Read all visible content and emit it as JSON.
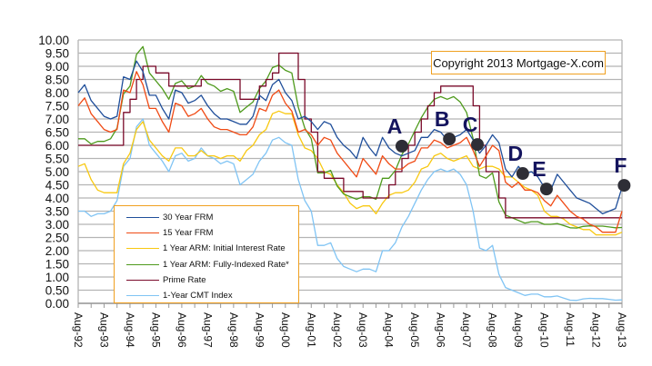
{
  "chart_data": {
    "type": "line",
    "title": "",
    "xlabel": "",
    "ylabel": "",
    "ylim": [
      0,
      10
    ],
    "y_ticks": [
      "0.00",
      "0.50",
      "1.00",
      "1.50",
      "2.00",
      "2.50",
      "3.00",
      "3.50",
      "4.00",
      "4.50",
      "5.00",
      "5.50",
      "6.00",
      "6.50",
      "7.00",
      "7.50",
      "8.00",
      "8.50",
      "9.00",
      "9.50",
      "10.00"
    ],
    "x_tick_labels": [
      "Aug-92",
      "Aug-93",
      "Aug-94",
      "Aug-95",
      "Aug-96",
      "Aug-97",
      "Aug-98",
      "Aug-99",
      "Aug-00",
      "Aug-01",
      "Aug-02",
      "Aug-03",
      "Aug-04",
      "Aug-05",
      "Aug-06",
      "Aug-07",
      "Aug-08",
      "Aug-09",
      "Aug-10",
      "Aug-11",
      "Aug-12",
      "Aug-13"
    ],
    "xlim": [
      "1992-08",
      "2013-08"
    ],
    "grid": "horizontal",
    "legend_position": "bottom-left",
    "x": [
      "1992-08",
      "1992-11",
      "1993-02",
      "1993-05",
      "1993-08",
      "1993-11",
      "1994-02",
      "1994-05",
      "1994-08",
      "1994-11",
      "1995-02",
      "1995-05",
      "1995-08",
      "1995-11",
      "1996-02",
      "1996-05",
      "1996-08",
      "1996-11",
      "1997-02",
      "1997-05",
      "1997-08",
      "1997-11",
      "1998-02",
      "1998-05",
      "1998-08",
      "1998-11",
      "1999-02",
      "1999-05",
      "1999-08",
      "1999-11",
      "2000-02",
      "2000-05",
      "2000-08",
      "2000-11",
      "2001-02",
      "2001-05",
      "2001-08",
      "2001-11",
      "2002-02",
      "2002-05",
      "2002-08",
      "2002-11",
      "2003-02",
      "2003-05",
      "2003-08",
      "2003-11",
      "2004-02",
      "2004-05",
      "2004-08",
      "2004-11",
      "2005-02",
      "2005-05",
      "2005-08",
      "2005-11",
      "2006-02",
      "2006-05",
      "2006-08",
      "2006-11",
      "2007-02",
      "2007-05",
      "2007-08",
      "2007-11",
      "2008-02",
      "2008-05",
      "2008-08",
      "2008-11",
      "2009-02",
      "2009-05",
      "2009-08",
      "2009-11",
      "2010-02",
      "2010-05",
      "2010-08",
      "2010-11",
      "2011-02",
      "2011-05",
      "2011-08",
      "2011-11",
      "2012-02",
      "2012-05",
      "2012-08",
      "2012-11",
      "2013-02",
      "2013-05",
      "2013-08"
    ],
    "series": [
      {
        "name": "30 Year FRM",
        "color": "#1f4e9a",
        "step": false,
        "values": [
          8.0,
          8.3,
          7.7,
          7.4,
          7.1,
          7.0,
          7.1,
          8.6,
          8.5,
          9.2,
          8.8,
          7.9,
          7.9,
          7.4,
          7.0,
          8.1,
          8.0,
          7.6,
          7.7,
          7.9,
          7.5,
          7.2,
          7.0,
          7.0,
          6.9,
          6.8,
          6.8,
          7.1,
          7.9,
          7.7,
          8.3,
          8.5,
          8.0,
          7.7,
          7.0,
          7.1,
          6.9,
          6.6,
          6.9,
          6.8,
          6.3,
          6.0,
          5.8,
          5.5,
          6.3,
          5.9,
          5.6,
          6.3,
          5.9,
          5.7,
          5.6,
          5.7,
          5.8,
          6.3,
          6.3,
          6.6,
          6.5,
          6.2,
          6.3,
          6.4,
          6.6,
          6.2,
          5.7,
          6.0,
          6.4,
          6.1,
          5.1,
          4.8,
          5.2,
          4.9,
          5.0,
          4.8,
          4.4,
          4.3,
          4.9,
          4.6,
          4.3,
          4.0,
          3.9,
          3.8,
          3.6,
          3.4,
          3.5,
          3.6,
          4.4
        ]
      },
      {
        "name": "15 Year FRM",
        "color": "#f04a14",
        "step": false,
        "values": [
          7.5,
          7.8,
          7.2,
          6.9,
          6.6,
          6.5,
          6.6,
          8.1,
          8.0,
          8.8,
          8.3,
          7.4,
          7.4,
          6.9,
          6.5,
          7.6,
          7.5,
          7.1,
          7.2,
          7.4,
          7.0,
          6.7,
          6.6,
          6.6,
          6.5,
          6.4,
          6.4,
          6.7,
          7.4,
          7.3,
          7.9,
          8.1,
          7.6,
          7.3,
          6.5,
          6.6,
          6.4,
          6.0,
          6.3,
          6.2,
          5.7,
          5.4,
          5.1,
          4.8,
          5.5,
          5.2,
          4.9,
          5.6,
          5.3,
          5.1,
          5.1,
          5.3,
          5.4,
          5.9,
          5.9,
          6.2,
          6.1,
          5.9,
          6.0,
          6.1,
          6.3,
          5.8,
          5.2,
          5.6,
          6.0,
          5.8,
          4.6,
          4.4,
          4.6,
          4.3,
          4.3,
          4.2,
          3.9,
          3.7,
          4.1,
          3.8,
          3.5,
          3.3,
          3.2,
          3.0,
          2.9,
          2.7,
          2.7,
          2.7,
          3.5
        ]
      },
      {
        "name": "1 Year ARM: Initial Interest Rate",
        "color": "#f8c810",
        "step": false,
        "values": [
          5.2,
          5.3,
          4.7,
          4.3,
          4.2,
          4.2,
          4.2,
          5.3,
          5.7,
          6.6,
          6.9,
          6.2,
          5.9,
          5.6,
          5.4,
          5.9,
          5.9,
          5.6,
          5.6,
          5.8,
          5.6,
          5.6,
          5.5,
          5.6,
          5.6,
          5.4,
          5.8,
          6.0,
          6.4,
          6.6,
          7.2,
          7.3,
          7.2,
          7.2,
          6.4,
          5.9,
          5.8,
          5.5,
          5.0,
          4.9,
          4.5,
          4.2,
          3.8,
          3.6,
          3.7,
          3.7,
          3.4,
          3.8,
          4.1,
          4.2,
          4.2,
          4.3,
          4.6,
          5.1,
          5.2,
          5.6,
          5.7,
          5.5,
          5.4,
          5.5,
          5.6,
          5.2,
          5.1,
          5.2,
          5.2,
          5.1,
          4.8,
          4.8,
          4.6,
          4.4,
          4.3,
          4.1,
          3.5,
          3.3,
          3.3,
          3.2,
          3.0,
          2.9,
          2.8,
          2.8,
          2.6,
          2.6,
          2.6,
          2.6,
          2.7
        ]
      },
      {
        "name": "1 Year ARM: Fully-Indexed Rate*",
        "color": "#4e9a1c",
        "step": false,
        "values": [
          6.25,
          6.25,
          6.05,
          6.15,
          6.15,
          6.25,
          6.65,
          7.95,
          8.25,
          9.45,
          9.75,
          8.75,
          8.45,
          8.15,
          7.75,
          8.35,
          8.45,
          8.15,
          8.25,
          8.65,
          8.35,
          8.25,
          8.05,
          8.15,
          8.05,
          7.25,
          7.45,
          7.65,
          8.15,
          8.45,
          8.95,
          9.05,
          8.85,
          8.75,
          7.45,
          6.65,
          6.25,
          4.95,
          4.95,
          5.05,
          4.45,
          4.15,
          4.05,
          3.95,
          4.05,
          4.05,
          3.95,
          4.75,
          4.75,
          5.05,
          5.65,
          6.05,
          6.55,
          7.05,
          7.45,
          7.75,
          7.85,
          7.75,
          7.85,
          7.65,
          7.25,
          6.25,
          4.85,
          4.75,
          4.95,
          3.85,
          3.35,
          3.25,
          3.15,
          3.05,
          3.1,
          3.1,
          3.0,
          3.0,
          3.03,
          2.95,
          2.87,
          2.86,
          2.92,
          2.94,
          2.93,
          2.93,
          2.9,
          2.87,
          2.88
        ]
      },
      {
        "name": "Prime Rate",
        "color": "#7a0a2a",
        "step": true,
        "values": [
          6.0,
          6.0,
          6.0,
          6.0,
          6.0,
          6.0,
          6.0,
          7.25,
          7.75,
          8.5,
          9.0,
          9.0,
          8.75,
          8.75,
          8.25,
          8.25,
          8.25,
          8.25,
          8.25,
          8.5,
          8.5,
          8.5,
          8.5,
          8.5,
          8.5,
          7.75,
          7.75,
          7.75,
          8.25,
          8.5,
          8.75,
          9.5,
          9.5,
          9.5,
          8.5,
          7.0,
          6.5,
          5.0,
          4.75,
          4.75,
          4.75,
          4.25,
          4.25,
          4.25,
          4.0,
          4.0,
          4.0,
          4.0,
          4.5,
          5.0,
          5.5,
          6.0,
          6.5,
          7.0,
          7.5,
          8.0,
          8.25,
          8.25,
          8.25,
          8.25,
          8.25,
          7.5,
          6.0,
          5.0,
          5.0,
          4.0,
          3.25,
          3.25,
          3.25,
          3.25,
          3.25,
          3.25,
          3.25,
          3.25,
          3.25,
          3.25,
          3.25,
          3.25,
          3.25,
          3.25,
          3.25,
          3.25,
          3.25,
          3.25,
          3.25
        ]
      },
      {
        "name": "1-Year CMT Index",
        "color": "#80c4f4",
        "step": false,
        "values": [
          3.5,
          3.5,
          3.3,
          3.4,
          3.4,
          3.5,
          3.9,
          5.2,
          5.5,
          6.7,
          7.0,
          6.0,
          5.7,
          5.4,
          5.0,
          5.6,
          5.7,
          5.4,
          5.5,
          5.9,
          5.6,
          5.5,
          5.3,
          5.4,
          5.3,
          4.5,
          4.7,
          4.9,
          5.4,
          5.7,
          6.2,
          6.3,
          6.1,
          6.0,
          4.7,
          3.9,
          3.5,
          2.2,
          2.2,
          2.3,
          1.7,
          1.4,
          1.3,
          1.2,
          1.3,
          1.3,
          1.2,
          2.0,
          2.0,
          2.3,
          2.9,
          3.3,
          3.8,
          4.3,
          4.7,
          5.0,
          5.1,
          5.0,
          5.1,
          4.9,
          4.5,
          3.5,
          2.1,
          2.0,
          2.2,
          1.1,
          0.6,
          0.5,
          0.4,
          0.3,
          0.35,
          0.35,
          0.25,
          0.25,
          0.28,
          0.2,
          0.12,
          0.11,
          0.17,
          0.19,
          0.18,
          0.18,
          0.15,
          0.12,
          0.13
        ]
      }
    ],
    "annotations": [
      {
        "label": "A",
        "date": "2005-02",
        "value": 5.97
      },
      {
        "label": "B",
        "date": "2006-12",
        "value": 6.24
      },
      {
        "label": "C",
        "date": "2008-01",
        "value": 6.03
      },
      {
        "label": "D",
        "date": "2009-10",
        "value": 4.93
      },
      {
        "label": "E",
        "date": "2010-09",
        "value": 4.34
      },
      {
        "label": "F",
        "date": "2013-09",
        "value": 4.48
      }
    ],
    "copyright": "Copyright 2013 Mortgage-X.com"
  }
}
